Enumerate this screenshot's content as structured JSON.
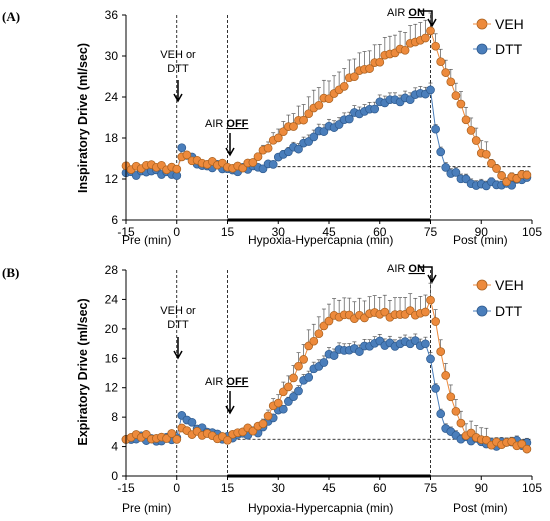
{
  "chart_data": [
    {
      "type": "line",
      "panel_label": "(A)",
      "ylabel": "Inspiratory Drive (ml/sec)",
      "xlim": [
        -15,
        105
      ],
      "ylim": [
        6,
        36
      ],
      "xticks": [
        -15,
        0,
        15,
        30,
        45,
        60,
        75,
        90,
        105
      ],
      "yticks": [
        6,
        12,
        18,
        24,
        30,
        36
      ],
      "segment_labels": [
        "Pre (min)",
        "Hypoxia-Hypercapnia (min)",
        "Post (min)"
      ],
      "annotations": {
        "veh_dtt_line1": "VEH or",
        "veh_dtt_line2": "DTT",
        "air_off_prefix": "AIR ",
        "air_off_bold": "OFF",
        "air_on_prefix": "AIR ",
        "air_on_bold": "ON"
      },
      "legend": [
        "VEH",
        "DTT"
      ],
      "colors": {
        "VEH": "#ED8A3C",
        "DTT": "#4A7EBB"
      },
      "reference_lines": {
        "injection_x": 0,
        "air_off_x": 15,
        "air_on_x": 75,
        "baseline_y": 13.8
      },
      "keypoints": {
        "VEH": [
          [
            -15,
            13.8
          ],
          [
            -1,
            13.8
          ],
          [
            0,
            13.4
          ],
          [
            1,
            15.3
          ],
          [
            5,
            14.8
          ],
          [
            15,
            13.8
          ],
          [
            22,
            14
          ],
          [
            27,
            17
          ],
          [
            40,
            22
          ],
          [
            55,
            28
          ],
          [
            70,
            32
          ],
          [
            74,
            32.3
          ],
          [
            75,
            34
          ],
          [
            76,
            32
          ],
          [
            80,
            27
          ],
          [
            90,
            16
          ],
          [
            97,
            12
          ],
          [
            105,
            12.5
          ]
        ],
        "DTT": [
          [
            -15,
            13
          ],
          [
            -1,
            13
          ],
          [
            0,
            12.5
          ],
          [
            1,
            16.5
          ],
          [
            4,
            15
          ],
          [
            8,
            14
          ],
          [
            15,
            13.4
          ],
          [
            25,
            13.6
          ],
          [
            30,
            15
          ],
          [
            45,
            19.5
          ],
          [
            60,
            23
          ],
          [
            74,
            24.5
          ],
          [
            75,
            24.8
          ],
          [
            76,
            21
          ],
          [
            78,
            16
          ],
          [
            80,
            13
          ],
          [
            90,
            11
          ],
          [
            100,
            11.5
          ],
          [
            105,
            12.3
          ]
        ]
      },
      "error_magnitude": {
        "VEH": 2.6,
        "DTT": 1.0
      }
    },
    {
      "type": "line",
      "panel_label": "(B)",
      "ylabel": "Expiratory Drive (ml/sec)",
      "xlim": [
        -15,
        105
      ],
      "ylim": [
        0,
        28
      ],
      "xticks": [
        -15,
        0,
        15,
        30,
        45,
        60,
        75,
        90,
        105
      ],
      "yticks": [
        0,
        4,
        8,
        12,
        16,
        20,
        24,
        28
      ],
      "segment_labels": [
        "Pre (min)",
        "Hypoxia-Hypercapnia (min)",
        "Post (min)"
      ],
      "annotations": {
        "veh_dtt_line1": "VEH or",
        "veh_dtt_line2": "DTT",
        "air_off_prefix": "AIR ",
        "air_off_bold": "OFF",
        "air_on_prefix": "AIR ",
        "air_on_bold": "ON"
      },
      "legend": [
        "VEH",
        "DTT"
      ],
      "colors": {
        "VEH": "#ED8A3C",
        "DTT": "#4A7EBB"
      },
      "reference_lines": {
        "injection_x": 0,
        "air_off_x": 15,
        "air_on_x": 75,
        "baseline_y": 5
      },
      "keypoints": {
        "VEH": [
          [
            -15,
            5.3
          ],
          [
            -1,
            5.3
          ],
          [
            0,
            5
          ],
          [
            1,
            6.5
          ],
          [
            5,
            6
          ],
          [
            10,
            5.3
          ],
          [
            15,
            5.3
          ],
          [
            20,
            6
          ],
          [
            25,
            7
          ],
          [
            30,
            10
          ],
          [
            40,
            18
          ],
          [
            45,
            21.5
          ],
          [
            60,
            22
          ],
          [
            73,
            22
          ],
          [
            75,
            24.2
          ],
          [
            76,
            22
          ],
          [
            80,
            12
          ],
          [
            85,
            6
          ],
          [
            90,
            4.8
          ],
          [
            105,
            4
          ]
        ],
        "DTT": [
          [
            -15,
            5
          ],
          [
            -1,
            5
          ],
          [
            0,
            4.8
          ],
          [
            1,
            8.5
          ],
          [
            4,
            7.5
          ],
          [
            8,
            6
          ],
          [
            15,
            5.3
          ],
          [
            20,
            5.5
          ],
          [
            25,
            6.5
          ],
          [
            30,
            8.5
          ],
          [
            40,
            14
          ],
          [
            45,
            16.5
          ],
          [
            60,
            18
          ],
          [
            73,
            18
          ],
          [
            74,
            18.2
          ],
          [
            75,
            16
          ],
          [
            76,
            13.5
          ],
          [
            78,
            8
          ],
          [
            80,
            6
          ],
          [
            90,
            4.5
          ],
          [
            105,
            4.5
          ]
        ]
      },
      "error_magnitude": {
        "VEH": 2.3,
        "DTT": 0.9
      }
    }
  ]
}
